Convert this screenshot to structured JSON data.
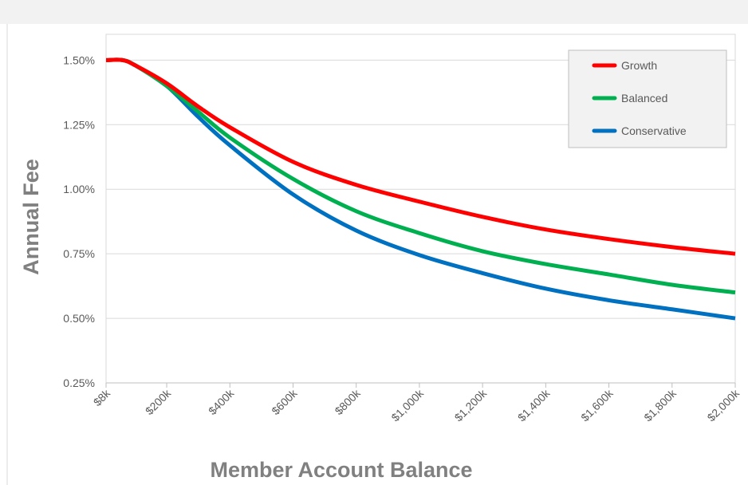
{
  "chart_data": {
    "type": "line",
    "x_label": "Member Account Balance",
    "y_label": "Annual Fee",
    "x": [
      8000,
      60000,
      100000,
      200000,
      300000,
      400000,
      600000,
      800000,
      1000000,
      1200000,
      1400000,
      1600000,
      1800000,
      2000000
    ],
    "series": [
      {
        "name": "Growth",
        "color": "#ff0000",
        "values": [
          1.5,
          1.5,
          1.48,
          1.41,
          1.32,
          1.24,
          1.106,
          1.017,
          0.952,
          0.893,
          0.844,
          0.807,
          0.776,
          0.75
        ]
      },
      {
        "name": "Balanced",
        "color": "#00b050",
        "values": [
          1.5,
          1.5,
          1.48,
          1.4,
          1.3,
          1.2,
          1.04,
          0.915,
          0.83,
          0.76,
          0.71,
          0.67,
          0.63,
          0.6
        ]
      },
      {
        "name": "Conservative",
        "color": "#0070c0",
        "values": [
          1.5,
          1.5,
          1.48,
          1.4,
          1.28,
          1.17,
          0.98,
          0.84,
          0.745,
          0.675,
          0.615,
          0.57,
          0.535,
          0.5
        ]
      }
    ],
    "xlim": [
      8000,
      2000000
    ],
    "xticks": [
      {
        "value": 8000,
        "label": "$8k"
      },
      {
        "value": 200000,
        "label": "$200k"
      },
      {
        "value": 400000,
        "label": "$400k"
      },
      {
        "value": 600000,
        "label": "$600k"
      },
      {
        "value": 800000,
        "label": "$800k"
      },
      {
        "value": 1000000,
        "label": "$1,000k"
      },
      {
        "value": 1200000,
        "label": "$1,200k"
      },
      {
        "value": 1400000,
        "label": "$1,400k"
      },
      {
        "value": 1600000,
        "label": "$1,600k"
      },
      {
        "value": 1800000,
        "label": "$1,800k"
      },
      {
        "value": 2000000,
        "label": "$2,000k"
      }
    ],
    "ylim": [
      0.25,
      1.6
    ],
    "yticks": [
      {
        "value": 0.25,
        "label": "0.25%"
      },
      {
        "value": 0.5,
        "label": "0.50%"
      },
      {
        "value": 0.75,
        "label": "0.75%"
      },
      {
        "value": 1.0,
        "label": "1.00%"
      },
      {
        "value": 1.25,
        "label": "1.25%"
      },
      {
        "value": 1.5,
        "label": "1.50%"
      }
    ],
    "grid": true,
    "legend": "top-right"
  }
}
